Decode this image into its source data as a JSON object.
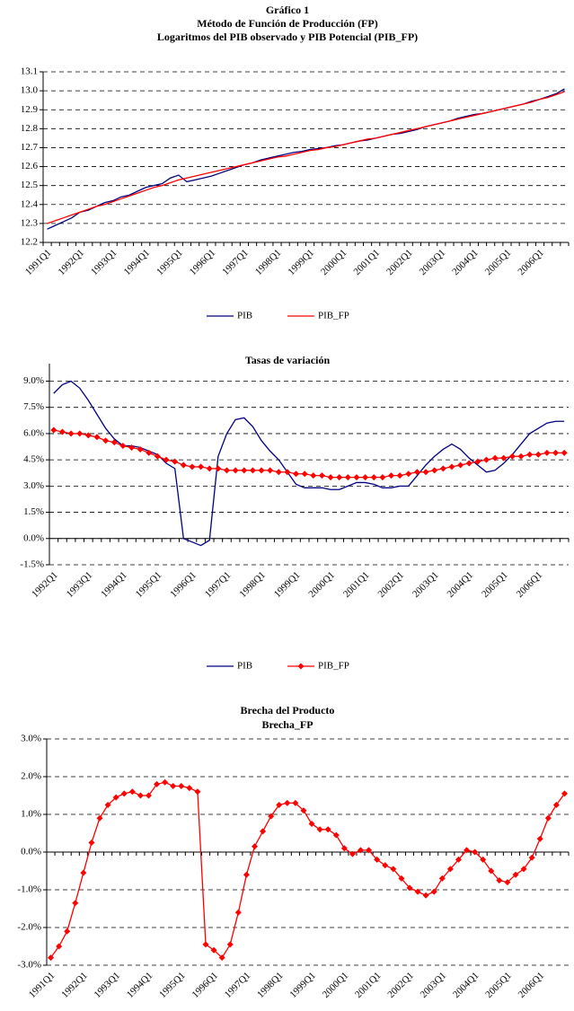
{
  "chart_data": [
    {
      "type": "line",
      "title": [
        "Gráfico 1",
        "Método de Función de Producción (FP)",
        "Logaritmos del PIB observado y PIB Potencial (PIB_FP)"
      ],
      "categories": [
        "1991Q1",
        null,
        null,
        null,
        "1992Q1",
        null,
        null,
        null,
        "1993Q1",
        null,
        null,
        null,
        "1994Q1",
        null,
        null,
        null,
        "1995Q1",
        null,
        null,
        null,
        "1996Q1",
        null,
        null,
        null,
        "1997Q1",
        null,
        null,
        null,
        "1998Q1",
        null,
        null,
        null,
        "1999Q1",
        null,
        null,
        null,
        "2000Q1",
        null,
        null,
        null,
        "2001Q1",
        null,
        null,
        null,
        "2002Q1",
        null,
        null,
        null,
        "2003Q1",
        null,
        null,
        null,
        "2004Q1",
        null,
        null,
        null,
        "2005Q1",
        null,
        null,
        null,
        "2006Q1",
        null,
        null,
        null
      ],
      "series": [
        {
          "name": "PIB",
          "color": "#000080",
          "values": [
            12.27,
            12.29,
            12.31,
            12.33,
            12.36,
            12.37,
            12.39,
            12.41,
            12.42,
            12.44,
            12.45,
            12.47,
            12.49,
            12.5,
            12.51,
            12.54,
            12.555,
            12.52,
            12.53,
            12.54,
            12.55,
            12.565,
            12.58,
            12.595,
            12.61,
            12.62,
            12.635,
            12.645,
            12.655,
            12.665,
            12.675,
            12.68,
            12.69,
            12.695,
            12.7,
            12.71,
            12.715,
            12.725,
            12.735,
            12.74,
            12.75,
            12.76,
            12.77,
            12.775,
            12.785,
            12.795,
            12.81,
            12.82,
            12.83,
            12.84,
            12.855,
            12.865,
            12.875,
            12.88,
            12.89,
            12.9,
            12.91,
            12.92,
            12.93,
            12.945,
            12.955,
            12.97,
            12.985,
            13.01
          ]
        },
        {
          "name": "PIB_FP",
          "color": "#ff0000",
          "values": [
            12.3,
            12.315,
            12.33,
            12.345,
            12.36,
            12.375,
            12.39,
            12.4,
            12.415,
            12.43,
            12.445,
            12.46,
            12.475,
            12.49,
            12.5,
            12.515,
            12.53,
            12.54,
            12.55,
            12.56,
            12.57,
            12.58,
            12.59,
            12.6,
            12.61,
            12.62,
            12.63,
            12.64,
            12.65,
            12.655,
            12.665,
            12.675,
            12.685,
            12.69,
            12.7,
            12.705,
            12.715,
            12.725,
            12.735,
            12.745,
            12.75,
            12.76,
            12.77,
            12.78,
            12.79,
            12.8,
            12.81,
            12.82,
            12.83,
            12.84,
            12.85,
            12.86,
            12.87,
            12.88,
            12.89,
            12.9,
            12.91,
            12.92,
            12.93,
            12.94,
            12.955,
            12.965,
            12.98,
            12.995
          ]
        }
      ],
      "ylim": [
        12.2,
        13.1
      ],
      "yticks": [
        12.2,
        12.3,
        12.4,
        12.5,
        12.6,
        12.7,
        12.8,
        12.9,
        {
          "value": 13,
          "label": "13.0"
        },
        13.1
      ],
      "grid": true,
      "legend": "bottom"
    },
    {
      "type": "line",
      "title": [
        "Tasas de variación"
      ],
      "categories": [
        "1992Q1",
        null,
        null,
        null,
        "1993Q1",
        null,
        null,
        null,
        "1994Q1",
        null,
        null,
        null,
        "1995Q1",
        null,
        null,
        null,
        "1996Q1",
        null,
        null,
        null,
        "1997Q1",
        null,
        null,
        null,
        "1998Q1",
        null,
        null,
        null,
        "1999Q1",
        null,
        null,
        null,
        "2000Q1",
        null,
        null,
        null,
        "2001Q1",
        null,
        null,
        null,
        "2002Q1",
        null,
        null,
        null,
        "2003Q1",
        null,
        null,
        null,
        "2004Q1",
        null,
        null,
        null,
        "2005Q1",
        null,
        null,
        null,
        "2006Q1",
        null,
        null,
        null
      ],
      "series": [
        {
          "name": "PIB",
          "color": "#000080",
          "values": [
            8.3,
            8.8,
            9.0,
            8.6,
            7.9,
            7.1,
            6.3,
            5.7,
            5.3,
            5.3,
            5.2,
            5.0,
            4.8,
            4.3,
            4.0,
            0.0,
            -0.2,
            -0.4,
            -0.1,
            4.7,
            6.0,
            6.8,
            6.9,
            6.4,
            5.6,
            5.0,
            4.5,
            3.8,
            3.1,
            2.9,
            2.9,
            2.9,
            2.8,
            2.8,
            3.0,
            3.2,
            3.2,
            3.1,
            2.9,
            2.9,
            3.0,
            3.0,
            3.6,
            4.2,
            4.7,
            5.1,
            5.4,
            5.1,
            4.6,
            4.2,
            3.8,
            3.9,
            4.3,
            4.8,
            5.4,
            6.0,
            6.3,
            6.6,
            6.7,
            6.7
          ]
        },
        {
          "name": "PIB_FP",
          "color": "#ff0000",
          "marker": "diamond",
          "values": [
            6.2,
            6.1,
            6.0,
            6.0,
            5.9,
            5.8,
            5.6,
            5.5,
            5.3,
            5.2,
            5.1,
            4.9,
            4.7,
            4.5,
            4.4,
            4.2,
            4.1,
            4.1,
            4.0,
            4.0,
            3.9,
            3.9,
            3.9,
            3.9,
            3.9,
            3.9,
            3.8,
            3.8,
            3.7,
            3.7,
            3.6,
            3.6,
            3.5,
            3.5,
            3.5,
            3.5,
            3.5,
            3.5,
            3.5,
            3.6,
            3.6,
            3.7,
            3.8,
            3.8,
            3.9,
            4.0,
            4.1,
            4.2,
            4.3,
            4.4,
            4.5,
            4.6,
            4.6,
            4.7,
            4.7,
            4.8,
            4.8,
            4.9,
            4.9,
            4.9
          ]
        }
      ],
      "ylim": [
        -1.5,
        10.0
      ],
      "yticks": [
        {
          "value": -1.5,
          "label": "-1.5%"
        },
        {
          "value": 0,
          "label": "0.0%"
        },
        {
          "value": 1.5,
          "label": "1.5%"
        },
        {
          "value": 3,
          "label": "3.0%"
        },
        {
          "value": 4.5,
          "label": "4.5%"
        },
        {
          "value": 6,
          "label": "6.0%"
        },
        {
          "value": 7.5,
          "label": "7.5%"
        },
        {
          "value": 9,
          "label": "9.0%"
        }
      ],
      "grid": true,
      "legend": "bottom"
    },
    {
      "type": "line",
      "title": [
        "Brecha del Producto",
        "Brecha_FP"
      ],
      "categories": [
        "1991Q1",
        null,
        null,
        null,
        "1992Q1",
        null,
        null,
        null,
        "1993Q1",
        null,
        null,
        null,
        "1994Q1",
        null,
        null,
        null,
        "1995Q1",
        null,
        null,
        null,
        "1996Q1",
        null,
        null,
        null,
        "1997Q1",
        null,
        null,
        null,
        "1998Q1",
        null,
        null,
        null,
        "1999Q1",
        null,
        null,
        null,
        "2000Q1",
        null,
        null,
        null,
        "2001Q1",
        null,
        null,
        null,
        "2002Q1",
        null,
        null,
        null,
        "2003Q1",
        null,
        null,
        null,
        "2004Q1",
        null,
        null,
        null,
        "2005Q1",
        null,
        null,
        null,
        "2006Q1",
        null,
        null,
        null
      ],
      "values": [
        -2.8,
        -2.5,
        -2.1,
        -1.35,
        -0.55,
        0.25,
        0.9,
        1.25,
        1.45,
        1.55,
        1.6,
        1.5,
        1.5,
        1.8,
        1.85,
        1.75,
        1.75,
        1.7,
        1.6,
        -2.45,
        -2.6,
        -2.8,
        -2.45,
        -1.6,
        -0.6,
        0.15,
        0.55,
        0.95,
        1.25,
        1.3,
        1.3,
        1.1,
        0.75,
        0.6,
        0.6,
        0.45,
        0.1,
        -0.05,
        0.05,
        0.05,
        -0.2,
        -0.35,
        -0.45,
        -0.7,
        -0.95,
        -1.05,
        -1.15,
        -1.05,
        -0.7,
        -0.45,
        -0.2,
        0.05,
        0.0,
        -0.2,
        -0.5,
        -0.75,
        -0.8,
        -0.6,
        -0.45,
        -0.15,
        0.35,
        0.9,
        1.25,
        1.55
      ],
      "color": "#ff0000",
      "marker": "diamond",
      "ylim": [
        -3,
        3
      ],
      "yticks": [
        {
          "value": -3,
          "label": "-3.0%"
        },
        {
          "value": -2,
          "label": "-2.0%"
        },
        {
          "value": -1,
          "label": "-1.0%"
        },
        {
          "value": 0,
          "label": "0.0%"
        },
        {
          "value": 1,
          "label": "1.0%"
        },
        {
          "value": 2,
          "label": "2.0%"
        },
        {
          "value": 3,
          "label": "3.0%"
        }
      ],
      "grid": true
    }
  ]
}
